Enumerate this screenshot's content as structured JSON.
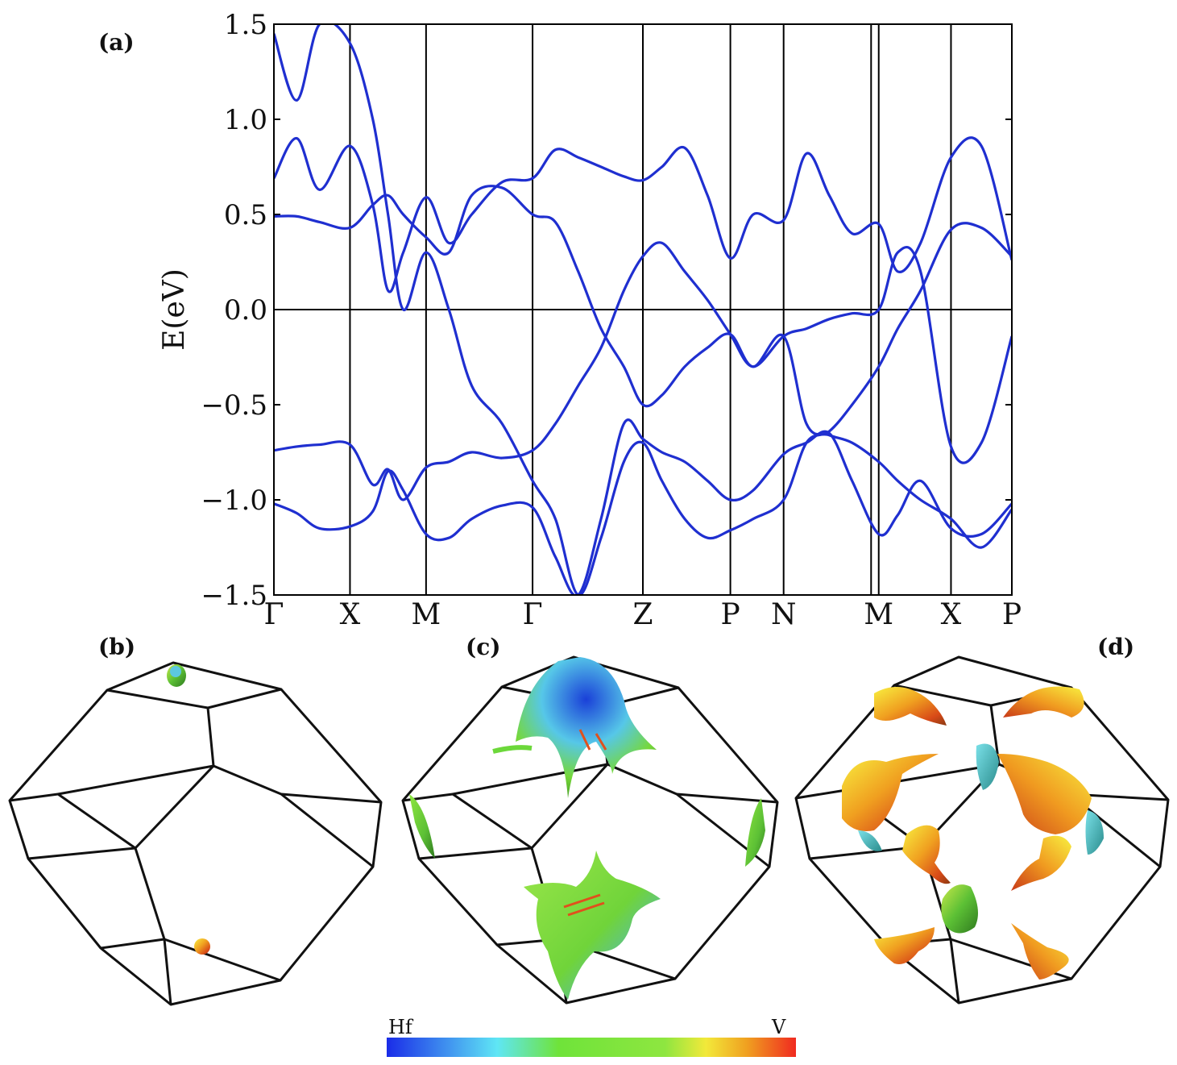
{
  "chart_data": [
    {
      "panel": "(a)",
      "type": "line",
      "ylabel": "E(eV)",
      "ylim": [
        -1.5,
        1.5
      ],
      "yticks": [
        "1.5",
        "1.0",
        "0.5",
        "0.0",
        "−0.5",
        "−1.0",
        "−1.5"
      ],
      "ytick_values": [
        1.5,
        1.0,
        0.5,
        0.0,
        -0.5,
        -1.0,
        -1.5
      ],
      "kpath": [
        {
          "label": "Γ",
          "k": 0.0
        },
        {
          "label": "X",
          "k": 1.0
        },
        {
          "label": "M",
          "k": 2.0
        },
        {
          "label": "Γ",
          "k": 3.4
        },
        {
          "label": "Z",
          "k": 4.85
        },
        {
          "label": "P",
          "k": 6.0
        },
        {
          "label": "N",
          "k": 6.7
        },
        {
          "label": "M",
          "k": 7.95
        },
        {
          "label": "X",
          "k": 8.9
        },
        {
          "label": "P",
          "k": 9.7
        }
      ],
      "extra_vlines": [
        7.85
      ],
      "fermi_level": 0.0,
      "line_color": "#1f2fd0",
      "series": [
        {
          "x": [
            0,
            0.3,
            0.6,
            1.0,
            1.3,
            1.5,
            1.7,
            2.0,
            2.3,
            2.6,
            3.0,
            3.4,
            3.7,
            4.0,
            4.3,
            4.6,
            4.85,
            5.1,
            5.4,
            5.7,
            6.0,
            6.3,
            6.7,
            7.0,
            7.3,
            7.6,
            7.95,
            8.2,
            8.5,
            8.9,
            9.3,
            9.7
          ],
          "values": [
            -0.74,
            -0.72,
            -0.71,
            -0.71,
            -0.92,
            -0.84,
            -1.0,
            -0.83,
            -0.8,
            -0.75,
            -0.78,
            -0.74,
            -0.6,
            -0.4,
            -0.2,
            0.1,
            0.28,
            0.35,
            0.2,
            0.05,
            -0.13,
            -0.3,
            -0.14,
            -0.1,
            -0.05,
            -0.02,
            0.0,
            0.3,
            0.2,
            -0.72,
            -0.7,
            -0.14
          ]
        },
        {
          "x": [
            0,
            0.3,
            0.6,
            1.0,
            1.3,
            1.5,
            1.7,
            2.0,
            2.3,
            2.6,
            3.0,
            3.4,
            3.7,
            4.0,
            4.3,
            4.6,
            4.85,
            5.1,
            5.4,
            5.7,
            6.0,
            6.3,
            6.7,
            7.0,
            7.3,
            7.6,
            7.95,
            8.2,
            8.5,
            8.9,
            9.3,
            9.7
          ],
          "values": [
            0.49,
            0.49,
            0.46,
            0.43,
            0.55,
            0.6,
            0.5,
            0.38,
            0.3,
            0.6,
            0.64,
            0.5,
            0.46,
            0.2,
            -0.1,
            -0.3,
            -0.5,
            -0.45,
            -0.3,
            -0.2,
            -0.13,
            -0.3,
            -0.14,
            -0.6,
            -0.66,
            -0.7,
            -0.8,
            -0.9,
            -1.0,
            -1.1,
            -1.25,
            -1.05
          ]
        },
        {
          "x": [
            0,
            0.3,
            0.6,
            1.0,
            1.3,
            1.5,
            1.7,
            2.0,
            2.3,
            2.6,
            3.0,
            3.4,
            3.7,
            4.0,
            4.3,
            4.6,
            4.85,
            5.1,
            5.4,
            5.7,
            6.0,
            6.3,
            6.7,
            7.0,
            7.3,
            7.6,
            7.95,
            8.2,
            8.5,
            8.9,
            9.3,
            9.7
          ],
          "values": [
            0.69,
            0.9,
            0.63,
            0.86,
            0.55,
            0.1,
            0.3,
            0.59,
            0.35,
            0.5,
            0.67,
            0.69,
            0.84,
            0.8,
            0.75,
            0.7,
            0.68,
            0.75,
            0.85,
            0.6,
            0.27,
            0.5,
            0.47,
            0.82,
            0.6,
            0.4,
            0.45,
            0.2,
            0.35,
            0.8,
            0.86,
            0.26
          ]
        },
        {
          "x": [
            0,
            0.3,
            0.6,
            1.0,
            1.3,
            1.5,
            1.7,
            2.0,
            2.3,
            2.6,
            3.0,
            3.4,
            3.7,
            4.0,
            4.3,
            4.6,
            4.85,
            5.1,
            5.4,
            5.7,
            6.0,
            6.3,
            6.7,
            7.0,
            7.3,
            7.6,
            7.95,
            8.2,
            8.5,
            8.9,
            9.3,
            9.7
          ],
          "values": [
            -1.02,
            -1.07,
            -1.15,
            -1.14,
            -1.06,
            -0.85,
            -0.95,
            -1.18,
            -1.2,
            -1.1,
            -1.03,
            -1.04,
            -1.3,
            -1.5,
            -1.1,
            -0.6,
            -0.68,
            -0.75,
            -0.8,
            -0.9,
            -1.0,
            -0.95,
            -0.76,
            -0.7,
            -0.65,
            -0.9,
            -1.18,
            -1.08,
            -0.9,
            -1.15,
            -1.18,
            -1.02
          ]
        },
        {
          "x": [
            0,
            0.3,
            0.6,
            1.0,
            1.3,
            1.5,
            1.7,
            2.0,
            2.3,
            2.6,
            3.0,
            3.4,
            3.7,
            4.0,
            4.3,
            4.6,
            4.85,
            5.1,
            5.4,
            5.7,
            6.0,
            6.3,
            6.7,
            7.0,
            7.3,
            7.6,
            7.95,
            8.2,
            8.5,
            8.9,
            9.3,
            9.7
          ],
          "values": [
            1.45,
            1.1,
            1.5,
            1.4,
            1.0,
            0.5,
            0.0,
            0.3,
            0.0,
            -0.4,
            -0.6,
            -0.9,
            -1.1,
            -1.5,
            -1.2,
            -0.8,
            -0.7,
            -0.9,
            -1.1,
            -1.2,
            -1.16,
            -1.1,
            -1.0,
            -0.7,
            -0.64,
            -0.5,
            -0.3,
            -0.1,
            0.1,
            0.42,
            0.43,
            0.28
          ]
        }
      ]
    },
    {
      "panel": "(b)",
      "type": "other"
    },
    {
      "panel": "(c)",
      "type": "other"
    },
    {
      "panel": "(d)",
      "type": "other"
    }
  ],
  "colorbar": {
    "left_label": "Hf",
    "right_label": "V",
    "colors": [
      "#1a2ce8",
      "#5fe6f5",
      "#6fe33a",
      "#8ee640",
      "#f2e93a",
      "#f0a020",
      "#f02a20"
    ]
  },
  "panel_labels": {
    "a": "(a)",
    "b": "(b)",
    "c": "(c)",
    "d": "(d)"
  }
}
